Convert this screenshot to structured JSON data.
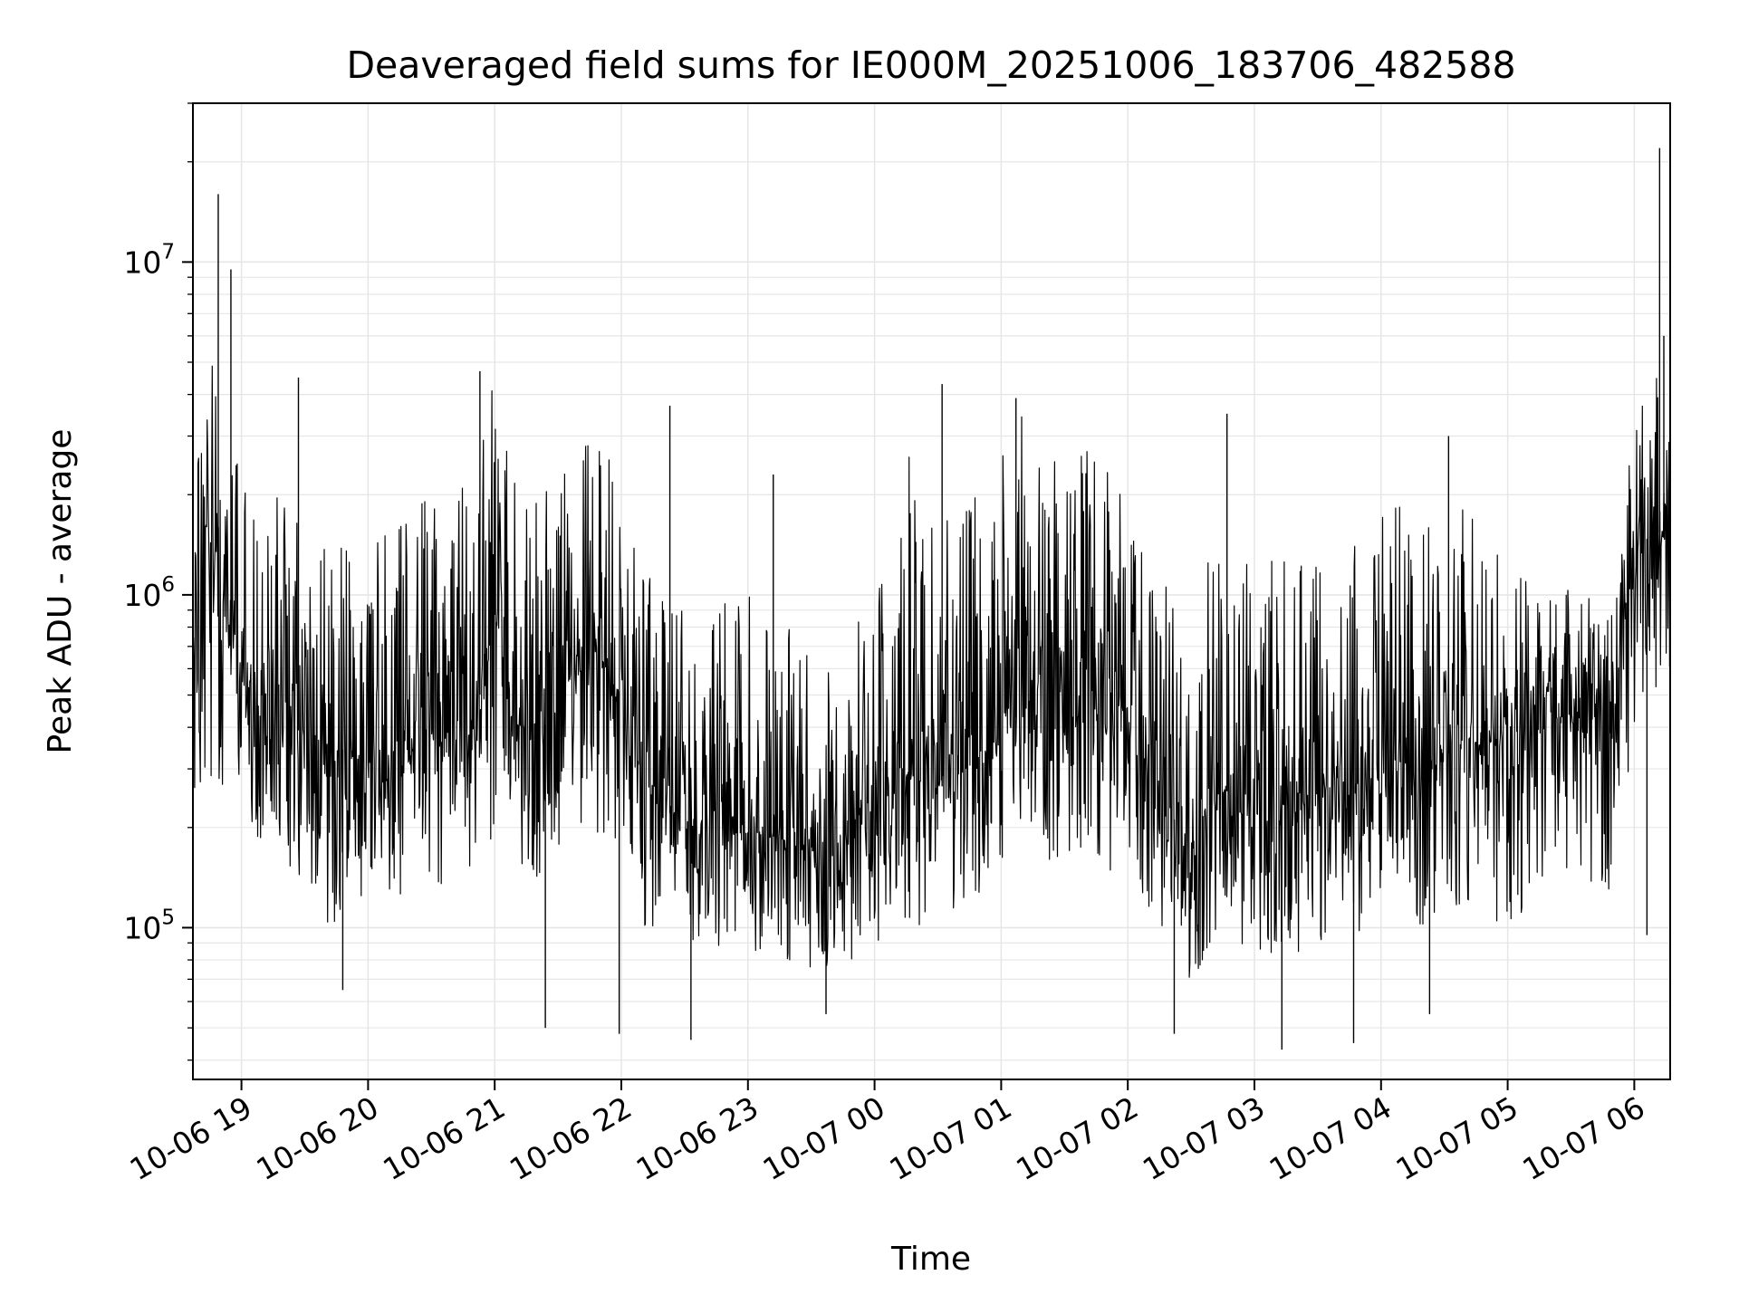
{
  "chart_data": {
    "type": "line",
    "title": "Deaveraged field sums for IE000M_20251006_183706_482588",
    "xlabel": "Time",
    "ylabel": "Peak ADU - average",
    "x_axis": {
      "kind": "datetime",
      "range": [
        "2025-10-06 18:37",
        "2025-10-07 06:17"
      ],
      "ticks": [
        {
          "t": "2025-10-06 19:00",
          "label": "10-06 19"
        },
        {
          "t": "2025-10-06 20:00",
          "label": "10-06 20"
        },
        {
          "t": "2025-10-06 21:00",
          "label": "10-06 21"
        },
        {
          "t": "2025-10-06 22:00",
          "label": "10-06 22"
        },
        {
          "t": "2025-10-06 23:00",
          "label": "10-06 23"
        },
        {
          "t": "2025-10-07 00:00",
          "label": "10-07 00"
        },
        {
          "t": "2025-10-07 01:00",
          "label": "10-07 01"
        },
        {
          "t": "2025-10-07 02:00",
          "label": "10-07 02"
        },
        {
          "t": "2025-10-07 03:00",
          "label": "10-07 03"
        },
        {
          "t": "2025-10-07 04:00",
          "label": "10-07 04"
        },
        {
          "t": "2025-10-07 05:00",
          "label": "10-07 05"
        },
        {
          "t": "2025-10-07 06:00",
          "label": "10-07 06"
        }
      ]
    },
    "y_axis": {
      "scale": "log",
      "range": [
        35000,
        30000000
      ],
      "ticks": [
        {
          "value": 100000,
          "base": "10",
          "exp": "5"
        },
        {
          "value": 1000000,
          "base": "10",
          "exp": "6"
        },
        {
          "value": 10000000,
          "base": "10",
          "exp": "7"
        }
      ]
    },
    "grid": true,
    "line_color": "#000000",
    "grid_color": "#e6e6e6",
    "series": [
      {
        "x": [
          "2025-10-06 18:37",
          "2025-10-06 18:45",
          "2025-10-06 18:52",
          "2025-10-06 19:00",
          "2025-10-06 19:10",
          "2025-10-06 19:20",
          "2025-10-06 19:30",
          "2025-10-06 19:40",
          "2025-10-06 19:50",
          "2025-10-06 20:00",
          "2025-10-06 20:10",
          "2025-10-06 20:20",
          "2025-10-06 20:30",
          "2025-10-06 20:40",
          "2025-10-06 20:50",
          "2025-10-06 21:00",
          "2025-10-06 21:10",
          "2025-10-06 21:20",
          "2025-10-06 21:30",
          "2025-10-06 21:40",
          "2025-10-06 21:50",
          "2025-10-06 22:00",
          "2025-10-06 22:10",
          "2025-10-06 22:20",
          "2025-10-06 22:30",
          "2025-10-06 22:40",
          "2025-10-06 22:50",
          "2025-10-06 23:00",
          "2025-10-06 23:10",
          "2025-10-06 23:20",
          "2025-10-06 23:30",
          "2025-10-06 23:40",
          "2025-10-06 23:50",
          "2025-10-07 00:00",
          "2025-10-07 00:10",
          "2025-10-07 00:20",
          "2025-10-07 00:30",
          "2025-10-07 00:40",
          "2025-10-07 00:50",
          "2025-10-07 01:00",
          "2025-10-07 01:10",
          "2025-10-07 01:20",
          "2025-10-07 01:30",
          "2025-10-07 01:40",
          "2025-10-07 01:50",
          "2025-10-07 02:00",
          "2025-10-07 02:10",
          "2025-10-07 02:20",
          "2025-10-07 02:30",
          "2025-10-07 02:40",
          "2025-10-07 02:50",
          "2025-10-07 03:00",
          "2025-10-07 03:10",
          "2025-10-07 03:20",
          "2025-10-07 03:30",
          "2025-10-07 03:40",
          "2025-10-07 03:50",
          "2025-10-07 04:00",
          "2025-10-07 04:10",
          "2025-10-07 04:20",
          "2025-10-07 04:30",
          "2025-10-07 04:40",
          "2025-10-07 04:50",
          "2025-10-07 05:00",
          "2025-10-07 05:10",
          "2025-10-07 05:20",
          "2025-10-07 05:30",
          "2025-10-07 05:40",
          "2025-10-07 05:50",
          "2025-10-07 06:00",
          "2025-10-07 06:10",
          "2025-10-07 06:17"
        ],
        "y": [
          600000,
          1500000,
          900000,
          550000,
          450000,
          420000,
          380000,
          350000,
          340000,
          320000,
          330000,
          360000,
          380000,
          360000,
          400000,
          850000,
          420000,
          380000,
          450000,
          700000,
          650000,
          500000,
          280000,
          230000,
          200000,
          190000,
          220000,
          200000,
          190000,
          180000,
          175000,
          170000,
          190000,
          200000,
          320000,
          280000,
          260000,
          290000,
          320000,
          380000,
          450000,
          420000,
          400000,
          480000,
          380000,
          460000,
          300000,
          220000,
          180000,
          250000,
          260000,
          240000,
          230000,
          220000,
          260000,
          280000,
          260000,
          300000,
          320000,
          280000,
          330000,
          350000,
          360000,
          380000,
          400000,
          420000,
          440000,
          460000,
          480000,
          1300000,
          1600000,
          1400000
        ],
        "lo": [
          250000,
          220000,
          260000,
          200000,
          180000,
          170000,
          120000,
          100000,
          110000,
          130000,
          110000,
          120000,
          140000,
          130000,
          150000,
          180000,
          160000,
          140000,
          170000,
          200000,
          190000,
          180000,
          100000,
          90000,
          85000,
          80000,
          90000,
          85000,
          80000,
          75000,
          70000,
          70000,
          80000,
          85000,
          110000,
          100000,
          95000,
          110000,
          120000,
          150000,
          170000,
          160000,
          150000,
          170000,
          140000,
          160000,
          110000,
          80000,
          70000,
          85000,
          90000,
          85000,
          80000,
          80000,
          90000,
          100000,
          95000,
          110000,
          115000,
          100000,
          115000,
          110000,
          105000,
          100000,
          110000,
          120000,
          125000,
          130000,
          130000,
          400000,
          500000,
          450000
        ],
        "hi": [
          3500000,
          5500000,
          4000000,
          2500000,
          1800000,
          2200000,
          1600000,
          1500000,
          1400000,
          1500000,
          1600000,
          1900000,
          2200000,
          1900000,
          2400000,
          4500000,
          2200000,
          1900000,
          2400000,
          2900000,
          2800000,
          2600000,
          1200000,
          1000000,
          900000,
          850000,
          1000000,
          1100000,
          900000,
          800000,
          750000,
          700000,
          900000,
          1000000,
          3000000,
          2600000,
          2000000,
          2400000,
          2500000,
          2800000,
          3500000,
          3200000,
          2600000,
          2900000,
          2400000,
          2700000,
          1600000,
          1100000,
          900000,
          1400000,
          1500000,
          1400000,
          1300000,
          1200000,
          1500000,
          1700000,
          1400000,
          1800000,
          1900000,
          1600000,
          2000000,
          1900000,
          1500000,
          1200000,
          1100000,
          1000000,
          1100000,
          1000000,
          1000000,
          3500000,
          5000000,
          4500000
        ]
      }
    ],
    "peaks": [
      {
        "t": "2025-10-06 18:49",
        "value": 16000000
      },
      {
        "t": "2025-10-06 18:55",
        "value": 9500000
      },
      {
        "t": "2025-10-06 19:27",
        "value": 4500000
      },
      {
        "t": "2025-10-06 20:53",
        "value": 4700000
      },
      {
        "t": "2025-10-06 22:23",
        "value": 3700000
      },
      {
        "t": "2025-10-06 23:12",
        "value": 2300000
      },
      {
        "t": "2025-10-07 00:32",
        "value": 4300000
      },
      {
        "t": "2025-10-07 01:07",
        "value": 3900000
      },
      {
        "t": "2025-10-07 02:47",
        "value": 3500000
      },
      {
        "t": "2025-10-07 04:32",
        "value": 3000000
      },
      {
        "t": "2025-10-07 06:12",
        "value": 22000000
      },
      {
        "t": "2025-10-07 06:14",
        "value": 6000000
      }
    ],
    "dips": [
      {
        "t": "2025-10-06 19:48",
        "value": 65000
      },
      {
        "t": "2025-10-06 21:24",
        "value": 50000
      },
      {
        "t": "2025-10-06 21:59",
        "value": 48000
      },
      {
        "t": "2025-10-06 22:33",
        "value": 46000
      },
      {
        "t": "2025-10-06 23:37",
        "value": 55000
      },
      {
        "t": "2025-10-07 02:22",
        "value": 48000
      },
      {
        "t": "2025-10-07 03:13",
        "value": 43000
      },
      {
        "t": "2025-10-07 03:47",
        "value": 45000
      },
      {
        "t": "2025-10-07 04:23",
        "value": 55000
      },
      {
        "t": "2025-10-07 06:06",
        "value": 95000
      }
    ]
  }
}
